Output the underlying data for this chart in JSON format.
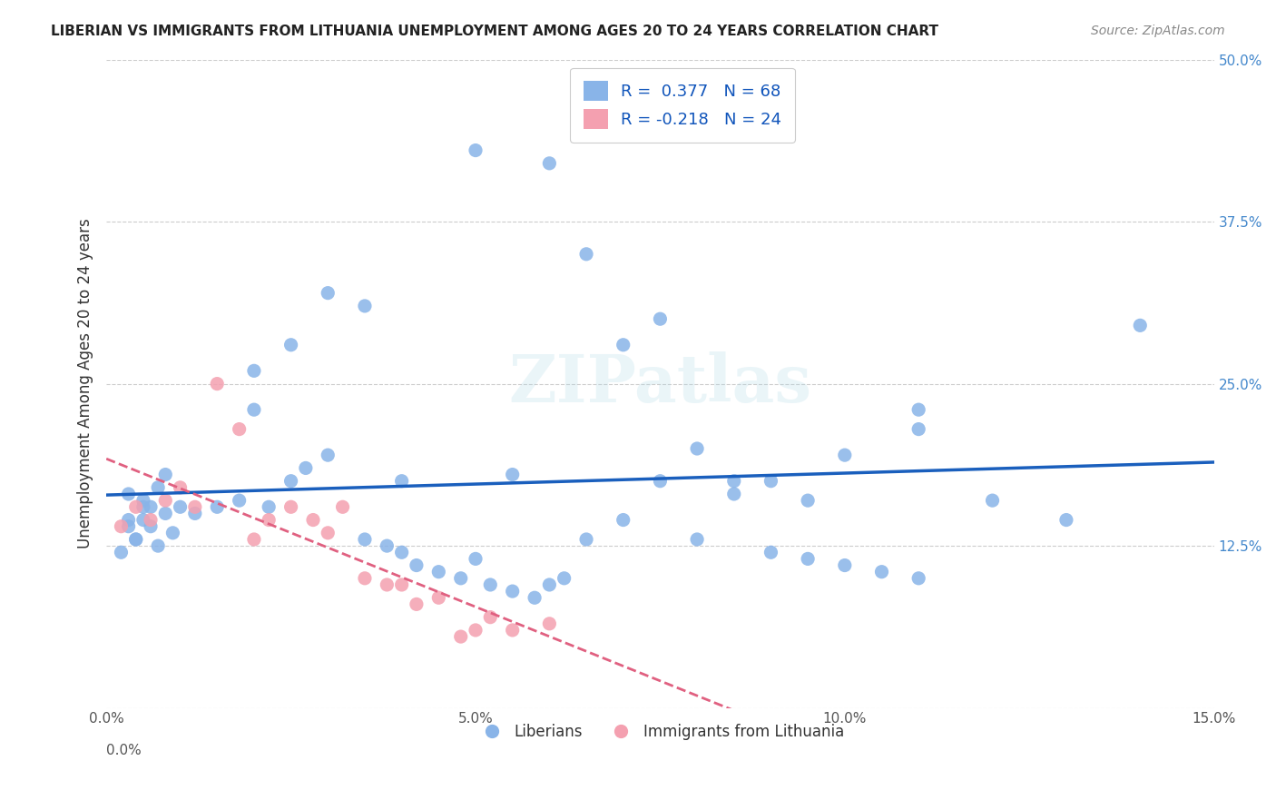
{
  "title": "LIBERIAN VS IMMIGRANTS FROM LITHUANIA UNEMPLOYMENT AMONG AGES 20 TO 24 YEARS CORRELATION CHART",
  "source": "Source: ZipAtlas.com",
  "xlabel": "",
  "ylabel": "Unemployment Among Ages 20 to 24 years",
  "xlim": [
    0,
    0.15
  ],
  "ylim": [
    0,
    0.5
  ],
  "xticks": [
    0.0,
    0.025,
    0.05,
    0.075,
    0.1,
    0.125,
    0.15
  ],
  "xticklabels": [
    "0.0%",
    "",
    "5.0%",
    "",
    "10.0%",
    "",
    "15.0%"
  ],
  "yticks": [
    0.0,
    0.125,
    0.25,
    0.375,
    0.5
  ],
  "yticklabels": [
    "",
    "12.5%",
    "25.0%",
    "37.5%",
    "50.0%"
  ],
  "liberian_R": 0.377,
  "liberian_N": 68,
  "lithuania_R": -0.218,
  "lithuania_N": 24,
  "blue_color": "#89b4e8",
  "pink_color": "#f4a0b0",
  "blue_line_color": "#1a5fbd",
  "pink_line_color": "#e06080",
  "watermark": "ZIPatlas",
  "background_color": "#ffffff",
  "liberian_x": [
    0.003,
    0.005,
    0.003,
    0.008,
    0.004,
    0.006,
    0.007,
    0.009,
    0.002,
    0.004,
    0.005,
    0.006,
    0.003,
    0.007,
    0.008,
    0.005,
    0.01,
    0.012,
    0.015,
    0.018,
    0.02,
    0.022,
    0.025,
    0.027,
    0.03,
    0.035,
    0.038,
    0.04,
    0.042,
    0.045,
    0.048,
    0.05,
    0.052,
    0.055,
    0.058,
    0.06,
    0.062,
    0.03,
    0.035,
    0.025,
    0.02,
    0.04,
    0.055,
    0.065,
    0.07,
    0.075,
    0.08,
    0.085,
    0.09,
    0.095,
    0.1,
    0.105,
    0.11,
    0.05,
    0.06,
    0.07,
    0.08,
    0.09,
    0.1,
    0.11,
    0.12,
    0.13,
    0.065,
    0.075,
    0.085,
    0.095,
    0.11,
    0.14
  ],
  "liberian_y": [
    0.14,
    0.155,
    0.145,
    0.15,
    0.13,
    0.14,
    0.125,
    0.135,
    0.12,
    0.13,
    0.145,
    0.155,
    0.165,
    0.17,
    0.18,
    0.16,
    0.155,
    0.15,
    0.155,
    0.16,
    0.23,
    0.155,
    0.175,
    0.185,
    0.195,
    0.13,
    0.125,
    0.12,
    0.11,
    0.105,
    0.1,
    0.115,
    0.095,
    0.09,
    0.085,
    0.095,
    0.1,
    0.32,
    0.31,
    0.28,
    0.26,
    0.175,
    0.18,
    0.13,
    0.145,
    0.175,
    0.13,
    0.165,
    0.12,
    0.115,
    0.11,
    0.105,
    0.1,
    0.43,
    0.42,
    0.28,
    0.2,
    0.175,
    0.195,
    0.215,
    0.16,
    0.145,
    0.35,
    0.3,
    0.175,
    0.16,
    0.23,
    0.295
  ],
  "lithuania_x": [
    0.002,
    0.004,
    0.006,
    0.008,
    0.01,
    0.012,
    0.015,
    0.018,
    0.02,
    0.022,
    0.025,
    0.028,
    0.03,
    0.032,
    0.035,
    0.038,
    0.04,
    0.042,
    0.045,
    0.048,
    0.05,
    0.052,
    0.055,
    0.06
  ],
  "lithuania_y": [
    0.14,
    0.155,
    0.145,
    0.16,
    0.17,
    0.155,
    0.25,
    0.215,
    0.13,
    0.145,
    0.155,
    0.145,
    0.135,
    0.155,
    0.1,
    0.095,
    0.095,
    0.08,
    0.085,
    0.055,
    0.06,
    0.07,
    0.06,
    0.065
  ]
}
